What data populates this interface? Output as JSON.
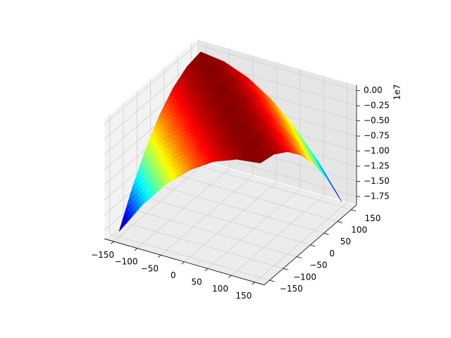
{
  "chart_data": {
    "type": "surface",
    "offset_label": "1e7",
    "x": [
      -150,
      -100,
      -50,
      0,
      50,
      100,
      150
    ],
    "y": [
      -150,
      -100,
      -50,
      0,
      50,
      100,
      150
    ],
    "z": [
      [
        -18000000,
        -12500000,
        -8000000,
        -4500000,
        -2000000,
        -500000,
        0
      ],
      [
        -12500000,
        -8000000,
        -4500000,
        -2000000,
        -500000,
        0,
        -500000
      ],
      [
        -8000000,
        -4500000,
        -2000000,
        -500000,
        0,
        -500000,
        -2000000
      ],
      [
        -4500000,
        -2000000,
        -500000,
        0,
        -500000,
        -2000000,
        -4500000
      ],
      [
        -2000000,
        -500000,
        0,
        -500000,
        -2000000,
        -4500000,
        -8000000
      ],
      [
        -500000,
        0,
        -500000,
        -2000000,
        -4500000,
        -8000000,
        -12500000
      ],
      [
        0,
        -500000,
        -2000000,
        -4500000,
        -8000000,
        -12500000,
        -18000000
      ]
    ],
    "colormap": "jet",
    "xlim": [
      -170,
      170
    ],
    "ylim": [
      -170,
      170
    ],
    "zlim": [
      -18900000,
      900000
    ],
    "xticks": [
      {
        "value": -150,
        "label": "−150"
      },
      {
        "value": -100,
        "label": "−100"
      },
      {
        "value": -50,
        "label": "−50"
      },
      0,
      50,
      100,
      150
    ],
    "yticks": [
      {
        "value": -150,
        "label": "−150"
      },
      {
        "value": -100,
        "label": "−100"
      },
      {
        "value": -50,
        "label": "−50"
      },
      0,
      50,
      100,
      150
    ],
    "zticks": [
      {
        "value": 0,
        "label": "0.00"
      },
      {
        "value": -2500000,
        "label": "−0.25"
      },
      {
        "value": -5000000,
        "label": "−0.50"
      },
      {
        "value": -7500000,
        "label": "−0.75"
      },
      {
        "value": -10000000,
        "label": "−1.00"
      },
      {
        "value": -12500000,
        "label": "−1.25"
      },
      {
        "value": -15000000,
        "label": "−1.50"
      },
      {
        "value": -17500000,
        "label": "−1.75"
      }
    ],
    "grid": true
  }
}
